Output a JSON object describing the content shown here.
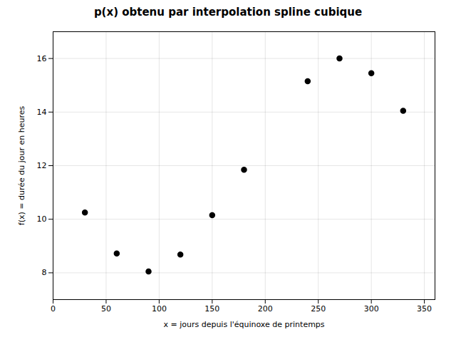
{
  "chart_data": {
    "type": "scatter",
    "title": "p(x) obtenu par interpolation spline cubique",
    "xlabel": "x = jours depuis l'équinoxe de printemps",
    "ylabel": "f(x) = durée du jour en heures",
    "x": [
      30,
      60,
      90,
      120,
      150,
      180,
      240,
      270,
      300,
      330
    ],
    "values": [
      10.25,
      8.72,
      8.05,
      8.68,
      10.15,
      11.85,
      15.15,
      16.0,
      15.45,
      14.05
    ],
    "xlim": [
      0,
      360
    ],
    "ylim": [
      7,
      17
    ],
    "xticks": [
      0,
      50,
      100,
      150,
      200,
      250,
      300,
      350
    ],
    "yticks": [
      8,
      10,
      12,
      14,
      16
    ],
    "color": "black",
    "grid": true
  }
}
